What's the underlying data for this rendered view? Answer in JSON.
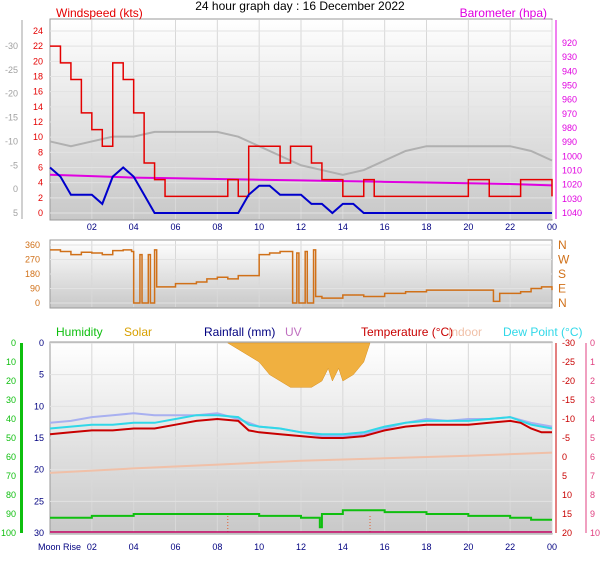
{
  "title": "24 hour graph day : 16 December 2022",
  "colors": {
    "windspeed": "#e40000",
    "windspeed_avg": "#0000cc",
    "barometer": "#e000e0",
    "wind_dir": "#d07018",
    "humidity": "#0fbf0f",
    "solar": "#d8a000",
    "rainfall": "#000080",
    "uv": "#c070c0",
    "temperature": "#c80000",
    "indoor": "#f0c0a8",
    "dewpoint": "#30d8e8",
    "aux_grey": "#b0b0b0",
    "light_blue": "#a8b0f0"
  },
  "chart_data": [
    {
      "type": "line",
      "panel": "wind",
      "series": [
        {
          "name": "Windspeed (kts)",
          "axis": "left",
          "x": [
            0,
            0.5,
            1,
            1.5,
            2,
            2.5,
            3,
            3.5,
            4,
            4.5,
            5,
            5.5,
            6,
            7,
            8,
            8.5,
            9,
            9.5,
            10,
            10.5,
            11,
            11.5,
            12,
            12.5,
            13,
            13.5,
            14,
            14.5,
            15,
            15.5,
            16,
            17,
            18,
            19,
            20,
            20.5,
            21,
            22,
            22.5,
            23,
            23.5,
            24
          ],
          "y": [
            10,
            9,
            8,
            6,
            5,
            4,
            9,
            8,
            6,
            3,
            2,
            1,
            1,
            1,
            1,
            2,
            1,
            4,
            4,
            4,
            3,
            4,
            4,
            3,
            2,
            2,
            1,
            1,
            2,
            1,
            1,
            1,
            1,
            1,
            2,
            2,
            1,
            1,
            2,
            2,
            2,
            1
          ]
        },
        {
          "name": "Windspeed avg",
          "axis": "left",
          "x": [
            0,
            0.5,
            1,
            1.5,
            2,
            2.5,
            3,
            3.5,
            4,
            4.5,
            5,
            5.5,
            6,
            7,
            8,
            9,
            9.5,
            10,
            10.5,
            11,
            11.5,
            12,
            12.5,
            13,
            13.5,
            14,
            14.5,
            15,
            16,
            17,
            18,
            19,
            20,
            21,
            22,
            23,
            24
          ],
          "y": [
            5,
            4,
            2,
            2,
            2,
            1,
            4,
            5,
            4,
            2,
            0,
            0,
            0,
            0,
            0,
            0,
            2,
            3,
            3,
            2,
            2,
            2,
            1,
            1,
            0,
            1,
            1,
            0,
            0,
            0,
            0,
            0,
            0,
            0,
            0,
            0,
            0
          ]
        },
        {
          "name": "Barometer (hpa)",
          "axis": "right",
          "x": [
            0,
            2,
            4,
            6,
            8,
            10,
            12,
            14,
            16,
            18,
            20,
            22,
            24
          ],
          "y": [
            1013.0,
            1014.0,
            1015.0,
            1015.5,
            1016.0,
            1016.5,
            1017.0,
            1017.5,
            1018.0,
            1018.5,
            1019.0,
            1019.5,
            1020.5
          ]
        },
        {
          "name": "Grey trace",
          "axis": "left",
          "x": [
            0,
            1,
            2,
            3,
            4,
            5,
            6,
            7,
            8,
            9,
            10,
            11,
            12,
            13,
            14,
            15,
            16,
            17,
            18,
            19,
            20,
            21,
            22,
            23,
            24
          ],
          "y": [
            -10,
            -9,
            -10,
            -11,
            -11,
            -12,
            -12,
            -12,
            -12,
            -11,
            -9,
            -7,
            -5,
            -4,
            -3,
            -4,
            -6,
            -8,
            -9,
            -9,
            -9,
            -9,
            -9,
            -8,
            -6
          ]
        }
      ],
      "left_axis": {
        "label": "Windspeed (kts)",
        "ylim": [
          -30,
          25
        ],
        "ticks": [
          24,
          22,
          20,
          18,
          16,
          14,
          12,
          10,
          8,
          6,
          4,
          2,
          0,
          -2,
          -5,
          -10,
          -15,
          -20,
          -25,
          -30
        ],
        "tick_labels": [
          "24",
          "22",
          "20",
          "18",
          "16",
          "14",
          "12",
          "10",
          "8",
          "6",
          "4",
          "2",
          "0",
          "-5",
          "-10",
          "-15",
          "-20",
          "-25",
          "-30"
        ]
      },
      "right_axis": {
        "label": "Barometer (hpa)",
        "ticks": [
          1040,
          1030,
          1020,
          1010,
          1000,
          990,
          980,
          970,
          960,
          950,
          940,
          930,
          920
        ]
      },
      "x_ticks": [
        "02",
        "04",
        "06",
        "08",
        "10",
        "12",
        "14",
        "16",
        "18",
        "20",
        "22",
        "00"
      ]
    },
    {
      "type": "line",
      "panel": "wind_direction",
      "series": [
        {
          "name": "Wind direction",
          "x": [
            0,
            0.5,
            1,
            1.5,
            2,
            2.5,
            3,
            3.5,
            3.9,
            4.0,
            4.3,
            4.4,
            4.7,
            4.8,
            5,
            5.1,
            6,
            7,
            7.5,
            8,
            8.5,
            9,
            9.5,
            10,
            10.5,
            11,
            11.5,
            11.6,
            11.8,
            11.9,
            12.2,
            12.3,
            12.6,
            12.7,
            13,
            14,
            15,
            16,
            17,
            18,
            19,
            20,
            21,
            21.2,
            21.5,
            22,
            22.5,
            23,
            23.5,
            24
          ],
          "y": [
            330,
            320,
            300,
            315,
            310,
            300,
            325,
            330,
            320,
            0,
            300,
            0,
            300,
            0,
            330,
            100,
            120,
            130,
            150,
            160,
            150,
            170,
            170,
            300,
            310,
            320,
            320,
            0,
            310,
            0,
            320,
            0,
            330,
            40,
            30,
            50,
            40,
            60,
            70,
            80,
            80,
            80,
            80,
            10,
            60,
            60,
            70,
            90,
            100,
            80
          ]
        }
      ],
      "y_ticks": [
        360,
        270,
        180,
        90,
        0
      ],
      "right_labels": [
        "N",
        "W",
        "S",
        "E",
        "N"
      ]
    },
    {
      "type": "line",
      "panel": "temperature_humidity",
      "legend": [
        "Humidity",
        "Solar",
        "Rainfall (mm)",
        "UV",
        "Temperature (°C)",
        "Indoor",
        "Dew Point (°C)"
      ],
      "series": [
        {
          "name": "Humidity",
          "axis": "far_left",
          "x": [
            0,
            1,
            2,
            3,
            4,
            5,
            6,
            7,
            8,
            9,
            10,
            11,
            12,
            12.8,
            12.9,
            13,
            14,
            15,
            16,
            17,
            18,
            19,
            20,
            21,
            22,
            23,
            24
          ],
          "y": [
            92,
            92,
            91,
            91,
            90,
            90,
            90,
            90,
            90,
            90,
            91,
            91,
            92,
            92,
            97,
            90,
            88,
            88,
            89,
            89,
            90,
            90,
            91,
            91,
            92,
            93,
            93
          ]
        },
        {
          "name": "Temperature (°C)",
          "axis": "right",
          "x": [
            0,
            1,
            2,
            3,
            4,
            5,
            6,
            7,
            8,
            9,
            9.5,
            10,
            11,
            12,
            13,
            14,
            15,
            16,
            17,
            18,
            19,
            20,
            21,
            22,
            22.5,
            23,
            23.5,
            24
          ],
          "y": [
            -6,
            -6.5,
            -7,
            -7,
            -7.5,
            -7.5,
            -8.5,
            -9.5,
            -10,
            -9.5,
            -7,
            -6.5,
            -6,
            -5.5,
            -5,
            -5,
            -5.5,
            -7,
            -8,
            -8.5,
            -8.5,
            -8.5,
            -9,
            -9.5,
            -9,
            -7.5,
            -6.5,
            -6.5
          ]
        },
        {
          "name": "Dew Point (°C)",
          "axis": "right",
          "x": [
            0,
            1,
            2,
            3,
            4,
            5,
            6,
            7,
            8,
            9,
            9.5,
            10,
            11,
            12,
            13,
            14,
            15,
            16,
            17,
            18,
            19,
            20,
            21,
            22,
            23,
            24
          ],
          "y": [
            -7.5,
            -8,
            -8.5,
            -8.5,
            -9,
            -9,
            -10,
            -11,
            -11,
            -10.5,
            -8.5,
            -8,
            -7.5,
            -6.5,
            -6,
            -6,
            -6.5,
            -8,
            -9,
            -9.5,
            -9.5,
            -9.5,
            -10,
            -10.5,
            -8.5,
            -7.5
          ]
        },
        {
          "name": "Light blue trace",
          "axis": "right",
          "x": [
            0,
            1,
            2,
            3,
            4,
            5,
            6,
            7,
            8,
            9,
            10,
            11,
            12,
            13,
            14,
            15,
            16,
            17,
            18,
            19,
            20,
            21,
            22,
            23,
            24
          ],
          "y": [
            -9,
            -9.5,
            -10.5,
            -11,
            -11.5,
            -11,
            -11,
            -11,
            -11.5,
            -10,
            -8,
            -7.5,
            -6.5,
            -5.5,
            -5.5,
            -6,
            -7.5,
            -9,
            -10,
            -9.5,
            -10,
            -10,
            -10.5,
            -9,
            -8
          ]
        },
        {
          "name": "Indoor",
          "axis": "left",
          "x": [
            0,
            4,
            8,
            12,
            16,
            20,
            24
          ],
          "y": [
            20.5,
            19.8,
            19.2,
            18.6,
            18.2,
            17.8,
            17.3
          ]
        },
        {
          "name": "Solar",
          "axis": "far_left",
          "x": [
            8.5,
            9,
            10,
            10.5,
            11,
            11.5,
            12,
            12.5,
            13,
            13.3,
            13.5,
            13.8,
            14,
            14.5,
            15,
            15.3
          ],
          "y": [
            0,
            1,
            3,
            5,
            6,
            7,
            7,
            7,
            6,
            4,
            6,
            4,
            6,
            5,
            3,
            0
          ]
        }
      ],
      "axes": {
        "far_left": {
          "ticks": [
            100,
            90,
            80,
            70,
            60,
            50,
            40,
            30,
            20,
            10,
            0
          ]
        },
        "left": {
          "ticks": [
            30,
            25,
            20,
            15,
            10,
            5,
            0
          ]
        },
        "right": {
          "ticks": [
            20,
            15,
            10,
            5,
            0,
            -5,
            -10,
            -15,
            -20,
            -25,
            -30
          ]
        },
        "far_right": {
          "ticks": [
            10,
            9,
            8,
            7,
            6,
            5,
            4,
            3,
            2,
            1,
            0
          ]
        }
      },
      "x_start_label": "Moon Rise",
      "x_ticks": [
        "02",
        "04",
        "06",
        "08",
        "10",
        "12",
        "14",
        "16",
        "18",
        "20",
        "22",
        "00"
      ]
    }
  ]
}
